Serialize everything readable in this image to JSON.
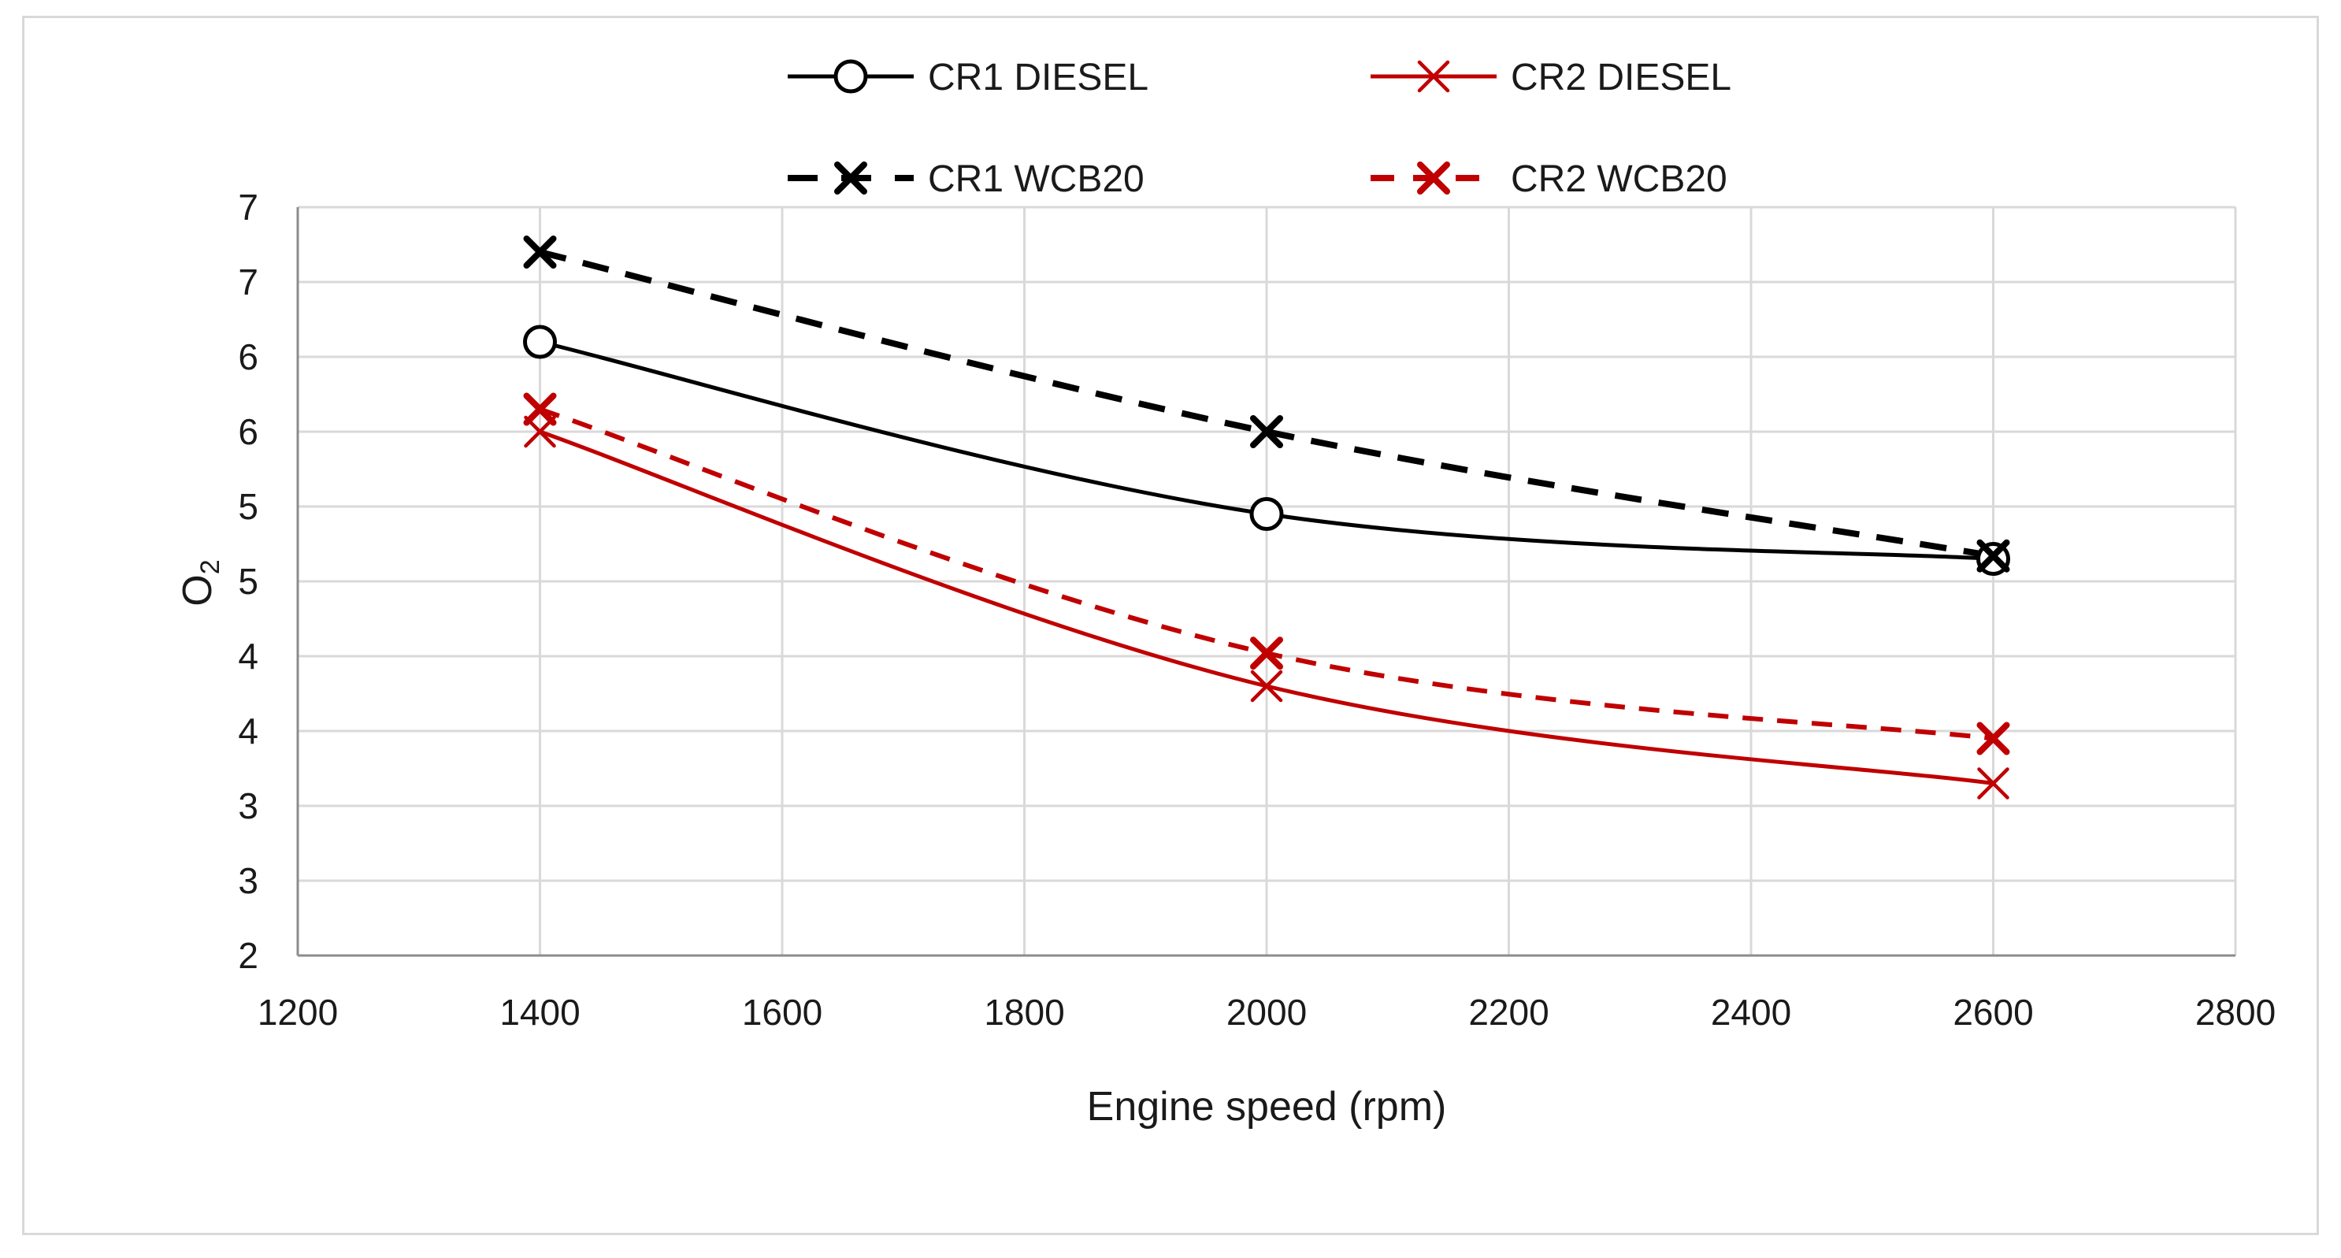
{
  "chart_data": {
    "type": "line",
    "title": "",
    "xlabel": "Engine speed (rpm)",
    "ylabel_main": "O",
    "ylabel_sub": "2",
    "xlim": [
      1200,
      2800
    ],
    "ylim": [
      2,
      7
    ],
    "grid": true,
    "legend_position": "top",
    "x_ticks": [
      1200,
      1400,
      1600,
      1800,
      2000,
      2200,
      2400,
      2600,
      2800
    ],
    "x_tick_labels": [
      "1200",
      "1400",
      "1600",
      "1800",
      "2000",
      "2200",
      "2400",
      "2600",
      "2800"
    ],
    "y_ticks": [
      2,
      2.5,
      3,
      3.5,
      4,
      4.5,
      5,
      5.5,
      6,
      6.5,
      7
    ],
    "y_tick_labels": [
      "2",
      "3",
      "3",
      "4",
      "4",
      "5",
      "5",
      "6",
      "6",
      "7",
      "7"
    ],
    "x": [
      1400,
      2000,
      2600
    ],
    "series": [
      {
        "name": "CR1 DIESEL",
        "values": [
          6.1,
          4.95,
          4.65
        ],
        "color": "#000000",
        "dash": "solid",
        "marker": "circle"
      },
      {
        "name": "CR2 DIESEL",
        "values": [
          5.5,
          3.8,
          3.15
        ],
        "color": "#c00000",
        "dash": "solid",
        "marker": "x"
      },
      {
        "name": "CR1 WCB20",
        "values": [
          6.7,
          5.5,
          4.67
        ],
        "color": "#000000",
        "dash": "dash",
        "marker": "x-bold"
      },
      {
        "name": "CR2 WCB20",
        "values": [
          5.65,
          4.02,
          3.45
        ],
        "color": "#c00000",
        "dash": "dash",
        "marker": "x-bold"
      }
    ]
  }
}
